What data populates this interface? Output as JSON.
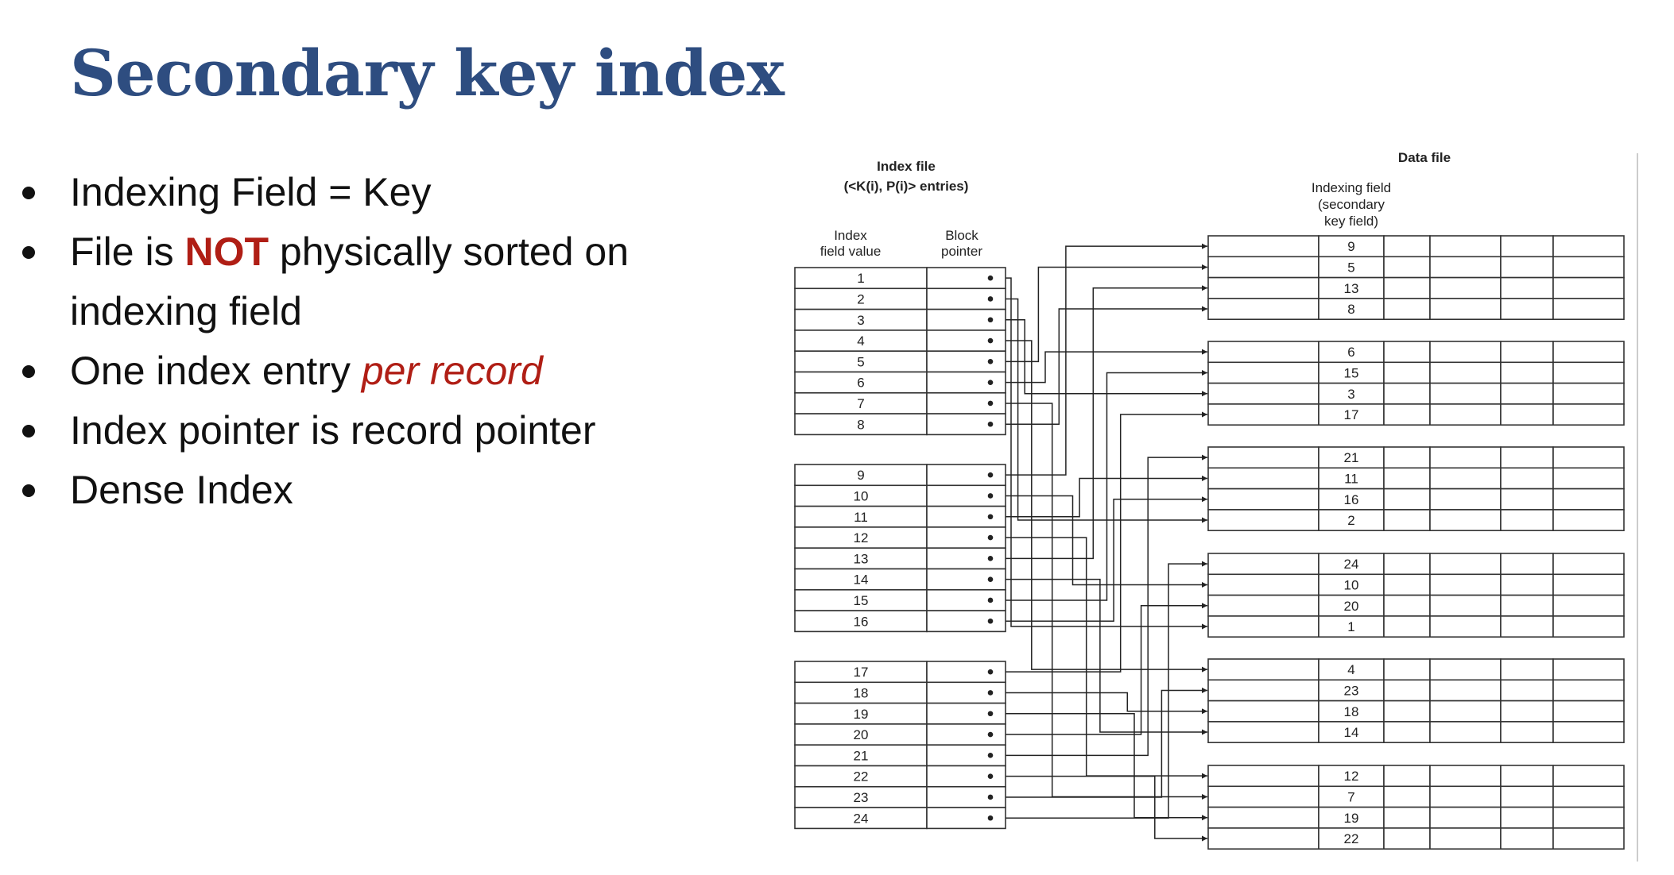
{
  "title": "Secondary key index",
  "bullets": [
    {
      "parts": [
        {
          "text": "Indexing Field = Key",
          "style": "normal"
        }
      ]
    },
    {
      "parts": [
        {
          "text": "File is ",
          "style": "normal"
        },
        {
          "text": "NOT",
          "style": "bold-red"
        },
        {
          "text": " physically sorted on indexing field",
          "style": "normal"
        }
      ]
    },
    {
      "parts": [
        {
          "text": "One index entry ",
          "style": "normal"
        },
        {
          "text": "per record",
          "style": "italic-red"
        }
      ]
    },
    {
      "parts": [
        {
          "text": "Index pointer is record pointer",
          "style": "normal"
        }
      ]
    },
    {
      "parts": [
        {
          "text": "Dense Index",
          "style": "normal"
        }
      ]
    }
  ],
  "diagram": {
    "index_file_title": "Index file",
    "index_file_subtitle": "(<K(i), P(i)> entries)",
    "col_index_value": [
      "Index",
      "field value"
    ],
    "col_block_pointer": [
      "Block",
      "pointer"
    ],
    "data_file_title": "Data file",
    "data_field_label": [
      "Indexing field",
      "(secondary",
      "key field)"
    ],
    "index_blocks": [
      [
        1,
        2,
        3,
        4,
        5,
        6,
        7,
        8
      ],
      [
        9,
        10,
        11,
        12,
        13,
        14,
        15,
        16
      ],
      [
        17,
        18,
        19,
        20,
        21,
        22,
        23,
        24
      ]
    ],
    "data_blocks": [
      [
        9,
        5,
        13,
        8
      ],
      [
        6,
        15,
        3,
        17
      ],
      [
        21,
        11,
        16,
        2
      ],
      [
        24,
        10,
        20,
        1
      ],
      [
        4,
        23,
        18,
        14
      ],
      [
        12,
        7,
        19,
        22
      ]
    ]
  }
}
